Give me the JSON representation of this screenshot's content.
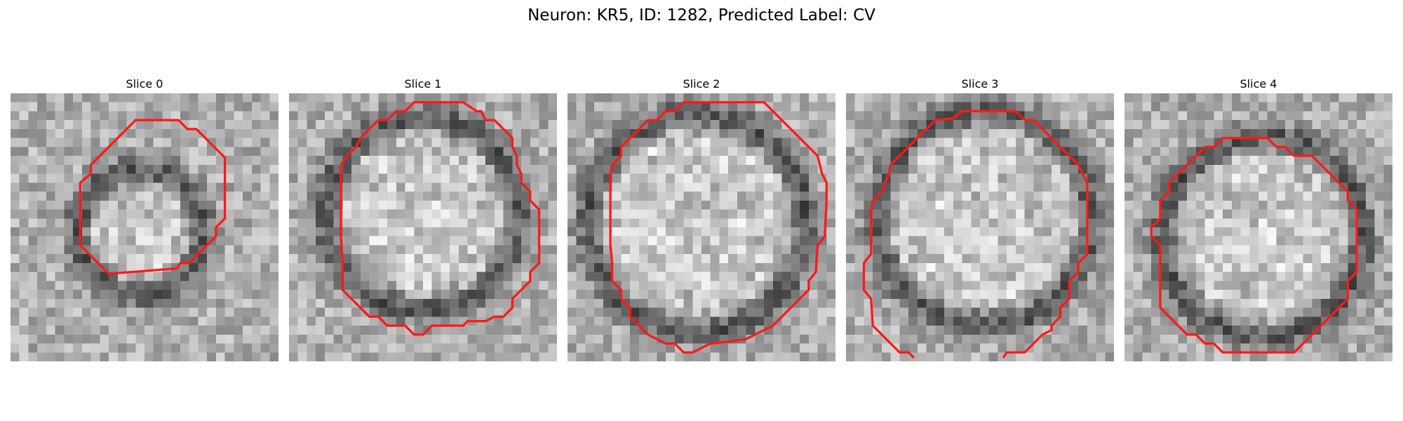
{
  "figure": {
    "title": "Neuron: KR5, ID: 1282, Predicted Label: CV"
  },
  "contour_color": "#ff1a1a",
  "panels": [
    {
      "title": "Slice 0",
      "seed": 11,
      "ring_radius": 7.0,
      "cx": 14.5,
      "cy": 15.5
    },
    {
      "title": "Slice 1",
      "seed": 23,
      "ring_radius": 10.8,
      "cx": 15.0,
      "cy": 13.5
    },
    {
      "title": "Slice 2",
      "seed": 37,
      "ring_radius": 12.2,
      "cx": 14.5,
      "cy": 14.5
    },
    {
      "title": "Slice 3",
      "seed": 51,
      "ring_radius": 12.0,
      "cx": 15.5,
      "cy": 14.0
    },
    {
      "title": "Slice 4",
      "seed": 67,
      "ring_radius": 11.2,
      "cx": 15.5,
      "cy": 16.0
    }
  ]
}
